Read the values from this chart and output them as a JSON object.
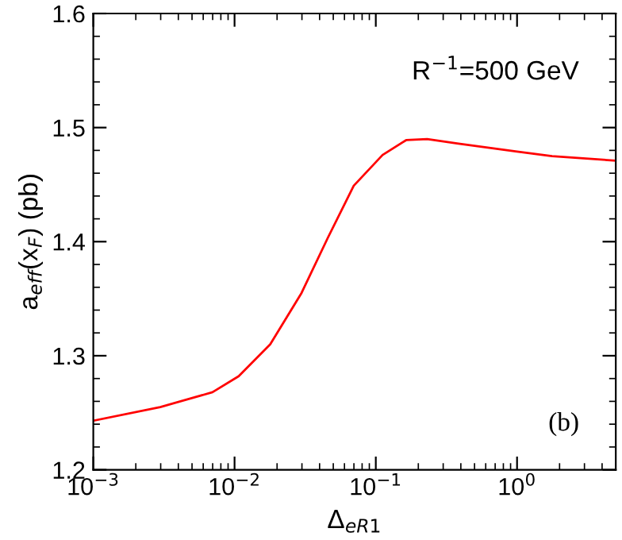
{
  "chart_data": {
    "type": "line",
    "xlabel": "Δ$_{eR1}$",
    "ylabel": "a$_{eff}$(x$_{F}$) (pb)",
    "annotations": [
      "R$^{−1}$=500 GeV",
      "(b)"
    ],
    "series": [
      {
        "color": "#ff0000",
        "x": [
          0.001,
          0.00298,
          0.00698,
          0.0107,
          0.0179,
          0.0298,
          0.0456,
          0.0698,
          0.1117,
          0.164,
          0.231,
          0.385,
          1,
          1.77,
          5
        ],
        "values": [
          1.243,
          1.255,
          1.268,
          1.282,
          1.31,
          1.355,
          1.403,
          1.449,
          1.476,
          1.489,
          1.49,
          1.486,
          1.479,
          1.475,
          1.471
        ]
      }
    ],
    "log": "x",
    "xlim": [
      0.001,
      5
    ],
    "ylim": [
      1.2,
      1.6
    ],
    "xticks": [
      {
        "value": 0.001,
        "label": "10$^{−3}$"
      },
      {
        "value": 0.01,
        "label": "10$^{−2}$"
      },
      {
        "value": 0.1,
        "label": "10$^{−1}$"
      },
      {
        "value": 1,
        "label": "10$^{0}$"
      }
    ],
    "yticks": [
      1.2,
      1.3,
      1.4,
      1.5,
      1.6
    ],
    "grid": false,
    "legend": false,
    "marker": "none",
    "line_style": "solid"
  }
}
